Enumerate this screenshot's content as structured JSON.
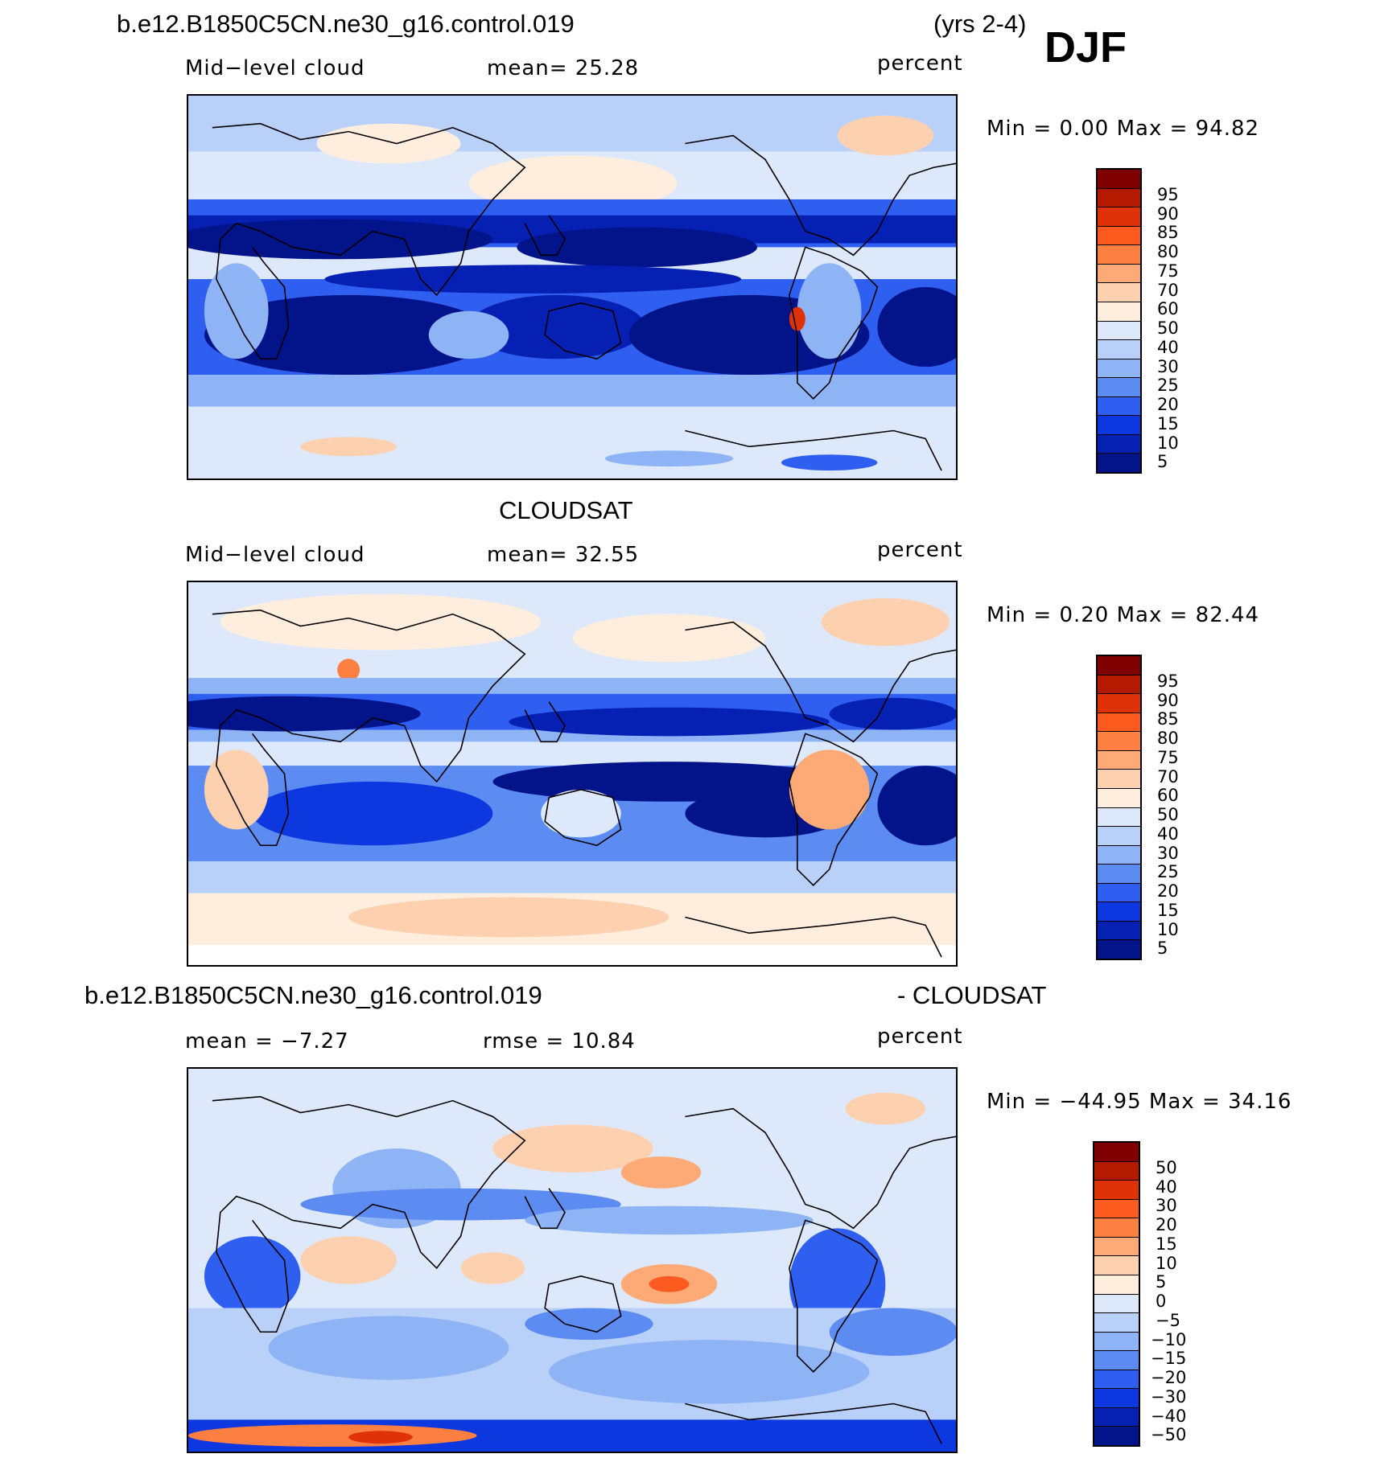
{
  "header": {
    "case_name": "b.e12.B1850C5CN.ne30_g16.control.019",
    "years": "(yrs 2-4)",
    "season": "DJF"
  },
  "panels": [
    {
      "id": "model",
      "title": "",
      "left_label": "Mid−level cloud",
      "center_label": "mean=   25.28",
      "right_label": "percent",
      "minmax": "Min =     0.00  Max =    94.82",
      "colorbar": {
        "levels": [
          "95",
          "90",
          "85",
          "80",
          "75",
          "70",
          "60",
          "50",
          "40",
          "30",
          "25",
          "20",
          "15",
          "10",
          "5"
        ],
        "colors": [
          "#7f0000",
          "#b31a00",
          "#e03208",
          "#fc5a1e",
          "#fd8042",
          "#fdaa76",
          "#fdd0b0",
          "#ffeedd",
          "#dde9fb",
          "#b9d1f9",
          "#8eb4f6",
          "#5c8bf2",
          "#2f5ff0",
          "#0d38e0",
          "#0620b4",
          "#03148a"
        ]
      }
    },
    {
      "id": "obs",
      "title": "CLOUDSAT",
      "left_label": "Mid−level cloud",
      "center_label": "mean=   32.55",
      "right_label": "percent",
      "minmax": "Min =     0.20  Max =    82.44",
      "colorbar": {
        "levels": [
          "95",
          "90",
          "85",
          "80",
          "75",
          "70",
          "60",
          "50",
          "40",
          "30",
          "25",
          "20",
          "15",
          "10",
          "5"
        ],
        "colors": [
          "#7f0000",
          "#b31a00",
          "#e03208",
          "#fc5a1e",
          "#fd8042",
          "#fdaa76",
          "#fdd0b0",
          "#ffeedd",
          "#dde9fb",
          "#b9d1f9",
          "#8eb4f6",
          "#5c8bf2",
          "#2f5ff0",
          "#0d38e0",
          "#0620b4",
          "#03148a"
        ]
      }
    },
    {
      "id": "diff",
      "title_left": "b.e12.B1850C5CN.ne30_g16.control.019",
      "title_right": "- CLOUDSAT",
      "left_label": "mean =   −7.27",
      "center_label": "rmse =    10.84",
      "right_label": "percent",
      "minmax": "Min = −44.95  Max =    34.16",
      "colorbar": {
        "levels": [
          "50",
          "40",
          "30",
          "20",
          "15",
          "10",
          "5",
          "0",
          "−5",
          "−10",
          "−15",
          "−20",
          "−30",
          "−40",
          "−50"
        ],
        "colors": [
          "#7f0000",
          "#b31a00",
          "#e03208",
          "#fc5a1e",
          "#fd8042",
          "#fdaa76",
          "#fdd0b0",
          "#ffeedd",
          "#dde9fb",
          "#b9d1f9",
          "#8eb4f6",
          "#5c8bf2",
          "#2f5ff0",
          "#0d38e0",
          "#0620b4",
          "#03148a"
        ]
      }
    }
  ]
}
